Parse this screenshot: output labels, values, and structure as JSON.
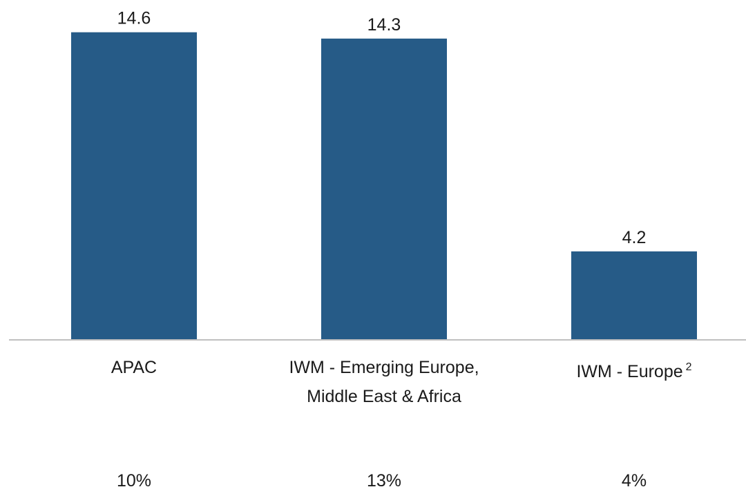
{
  "chart_data": {
    "type": "bar",
    "categories": [
      "APAC",
      "IWM - Emerging Europe, Middle East & Africa",
      "IWM - Europe"
    ],
    "category_notes": [
      null,
      null,
      "2"
    ],
    "values": [
      14.6,
      14.3,
      4.2
    ],
    "color": "#265b87",
    "ylim": [
      0,
      16
    ],
    "grid": false,
    "secondary_values": [
      10,
      13,
      4
    ],
    "secondary_value_labels": [
      "10%",
      "13%",
      "4%"
    ]
  }
}
